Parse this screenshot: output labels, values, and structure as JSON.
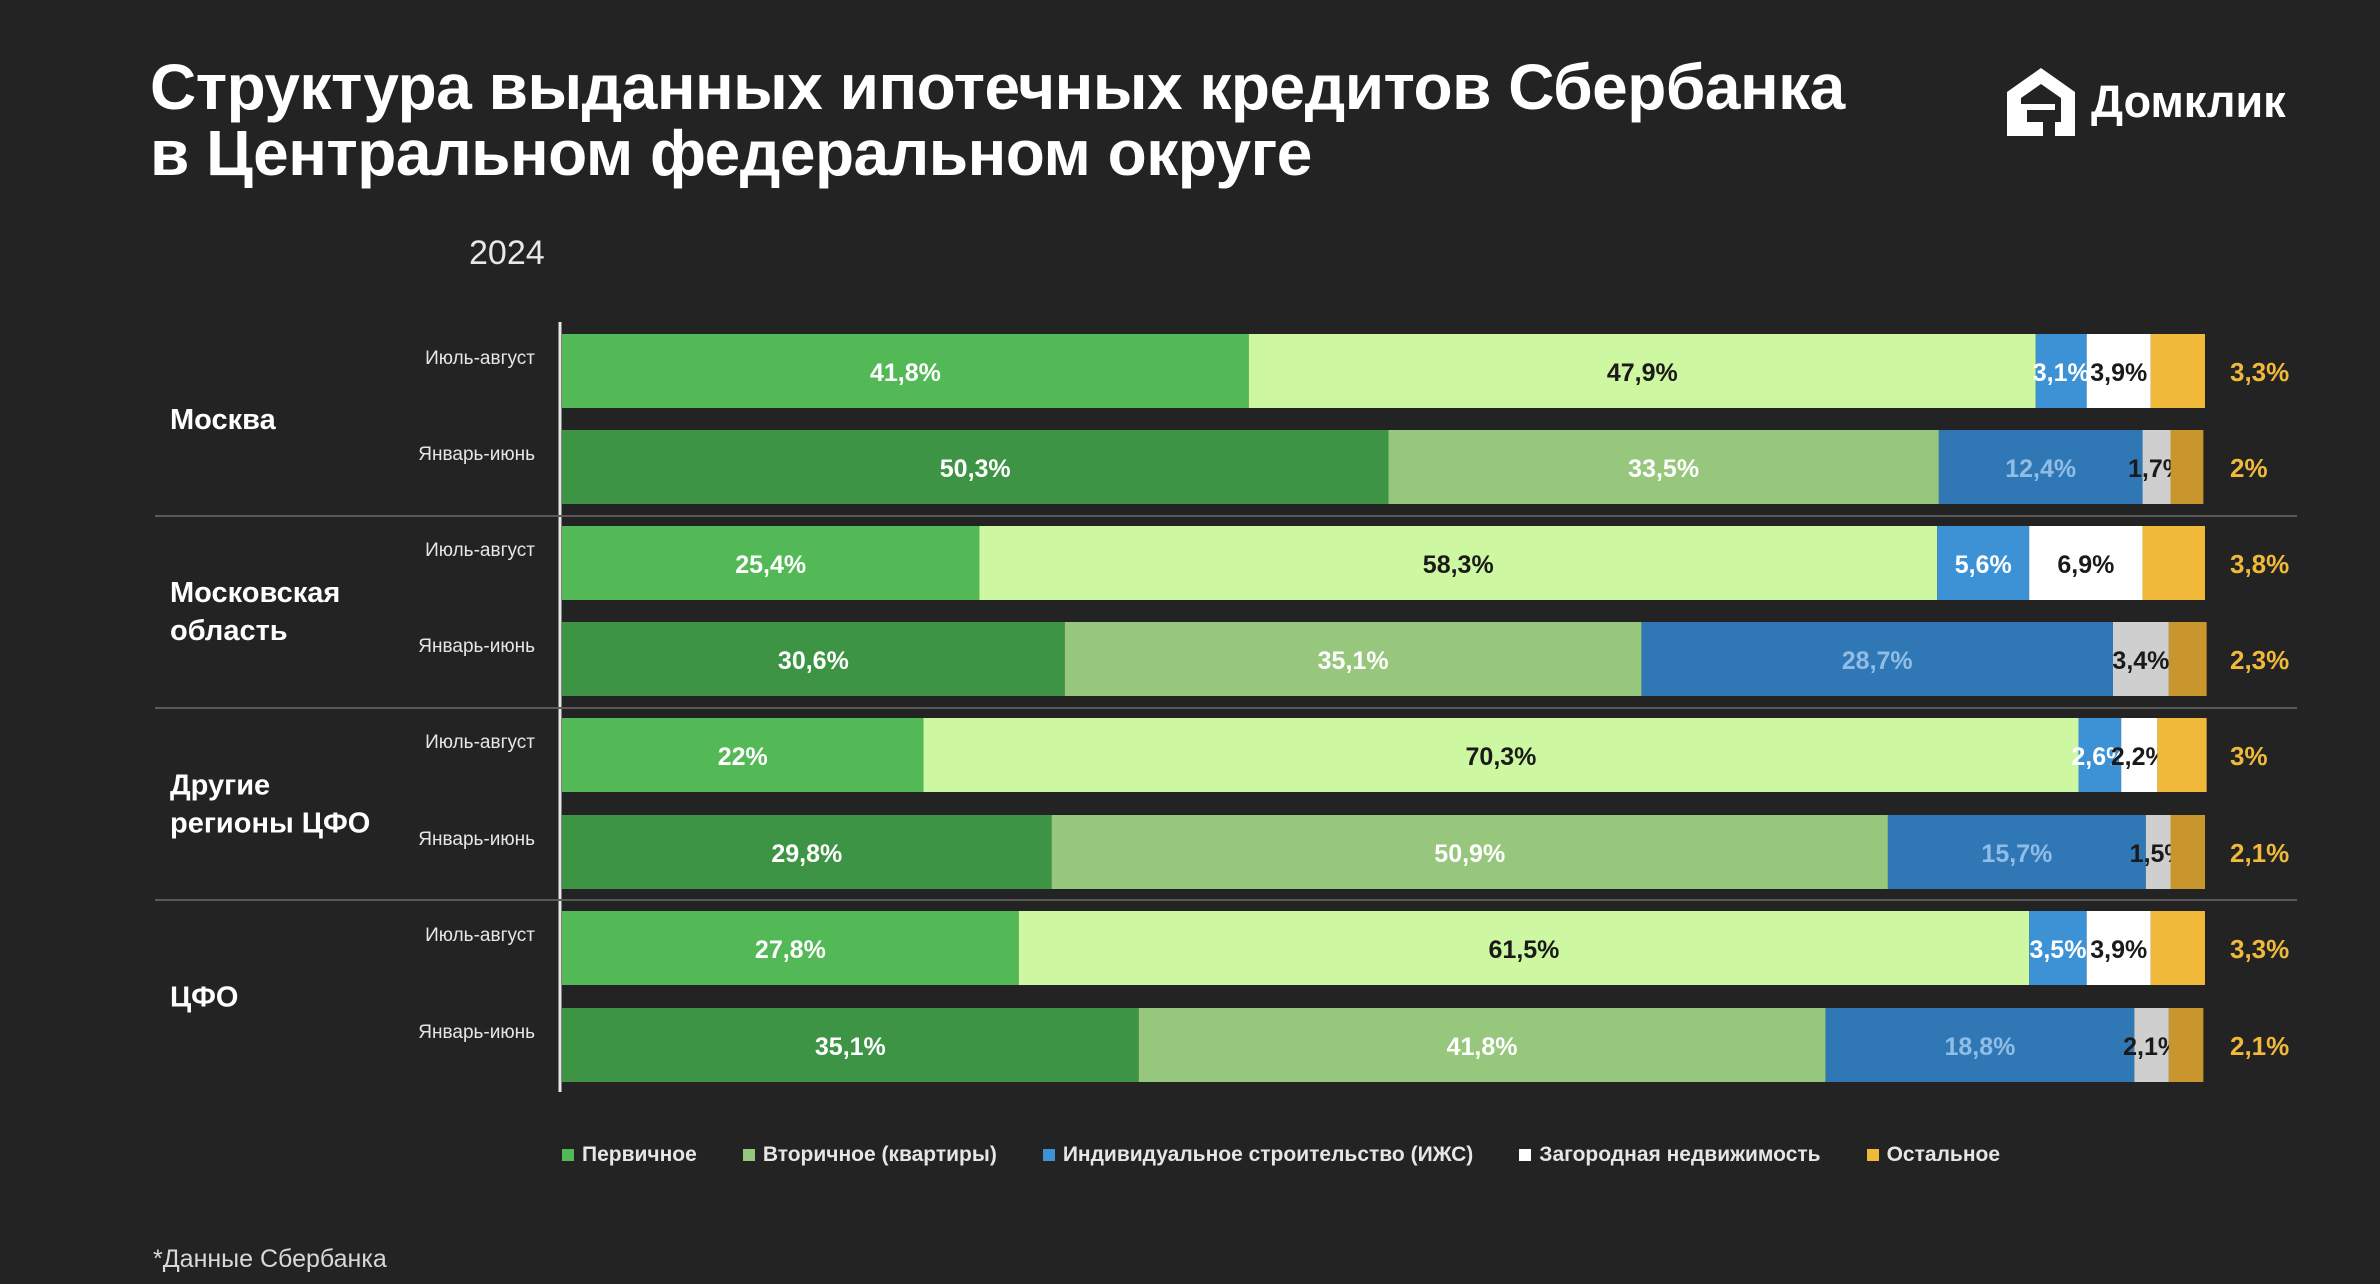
{
  "title": {
    "line1": "Структура выданных ипотечных кредитов Сбербанка",
    "line2": "в Центральном федеральном округе"
  },
  "logo": {
    "icon": "domclick-house-icon",
    "text": "Домклик"
  },
  "year": "2024",
  "legend": [
    {
      "label": "Первичное",
      "color": "#53b956"
    },
    {
      "label": "Вторичное (квартиры)",
      "color": "#97c77c"
    },
    {
      "label": "Индивидуальное строительство (ИЖС)",
      "color": "#3c92d4"
    },
    {
      "label": "Загородная недвижимость",
      "color": "#ffffff"
    },
    {
      "label": "Остальное",
      "color": "#f0b93a"
    }
  ],
  "footnote": "*Данные Сбербанка",
  "chart_data": {
    "type": "bar",
    "orientation": "horizontal",
    "stacked": true,
    "title": "Структура выданных ипотечных кредитов Сбербанка в Центральном федеральном округе",
    "subtitle": "2024",
    "series_names": [
      "Первичное",
      "Вторичное (квартиры)",
      "Индивидуальное строительство (ИЖС)",
      "Загородная недвижимость",
      "Остальное"
    ],
    "groups": [
      {
        "name": "Москва",
        "rows": [
          {
            "period": "Июль-август",
            "values": [
              41.8,
              47.9,
              3.1,
              3.9,
              3.3
            ],
            "labels": [
              "41,8%",
              "47,9%",
              "3,1%",
              "3,9%",
              "3,3%"
            ]
          },
          {
            "period": "Январь-июнь",
            "values": [
              50.3,
              33.5,
              12.4,
              1.7,
              2
            ],
            "labels": [
              "50,3%",
              "33,5%",
              "12,4%",
              "1,7%",
              "2%"
            ]
          }
        ]
      },
      {
        "name": "Московская область",
        "rows": [
          {
            "period": "Июль-август",
            "values": [
              25.4,
              58.3,
              5.6,
              6.9,
              3.8
            ],
            "labels": [
              "25,4%",
              "58,3%",
              "5,6%",
              "6,9%",
              "3,8%"
            ]
          },
          {
            "period": "Январь-июнь",
            "values": [
              30.6,
              35.1,
              28.7,
              3.4,
              2.3
            ],
            "labels": [
              "30,6%",
              "35,1%",
              "28,7%",
              "3,4%",
              "2,3%"
            ]
          }
        ]
      },
      {
        "name": "Другие регионы ЦФО",
        "rows": [
          {
            "period": "Июль-август",
            "values": [
              22,
              70.3,
              2.6,
              2.2,
              3
            ],
            "labels": [
              "22%",
              "70,3%",
              "2,6%",
              "2,2%",
              "3%"
            ]
          },
          {
            "period": "Январь-июнь",
            "values": [
              29.8,
              50.9,
              15.7,
              1.5,
              2.1
            ],
            "labels": [
              "29,8%",
              "50,9%",
              "15,7%",
              "1,5%",
              "2,1%"
            ]
          }
        ]
      },
      {
        "name": "ЦФО",
        "rows": [
          {
            "period": "Июль-август",
            "values": [
              27.8,
              61.5,
              3.5,
              3.9,
              3.3
            ],
            "labels": [
              "27,8%",
              "61,5%",
              "3,5%",
              "3,9%",
              "3,3%"
            ]
          },
          {
            "period": "Январь-июнь",
            "values": [
              35.1,
              41.8,
              18.8,
              2.1,
              2.1
            ],
            "labels": [
              "35,1%",
              "41,8%",
              "18,8%",
              "2,1%",
              "2,1%"
            ]
          }
        ]
      }
    ],
    "colors": {
      "recent": [
        "#53b956",
        "#cdf7a1",
        "#3c92d4",
        "#ffffff",
        "#f0b93a"
      ],
      "earlier": [
        "#3d9445",
        "#97c77c",
        "#2f78b5",
        "#cfcfcf",
        "#c9952d"
      ]
    },
    "xlim": [
      0,
      100
    ]
  }
}
